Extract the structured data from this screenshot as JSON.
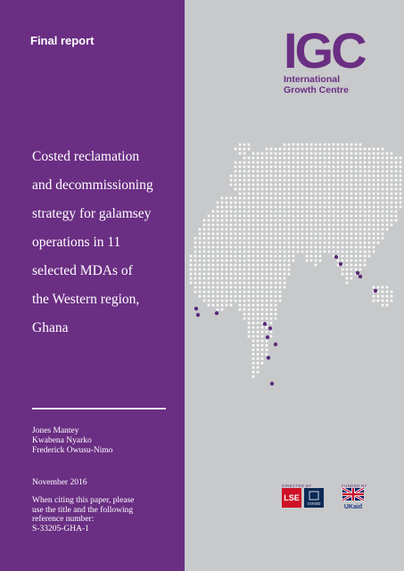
{
  "report_label": "Final report",
  "logo": {
    "acronym": "IGC",
    "name_line1": "International",
    "name_line2": "Growth Centre"
  },
  "title_lines": [
    "Costed reclamation",
    "and decommissioning",
    "strategy for galamsey",
    "operations in 11",
    "selected MDAs of",
    "the Western region,",
    "Ghana"
  ],
  "authors": [
    "Jones Mantey",
    "Kwabena Nyarko",
    "Frederick Owusu-Nimo"
  ],
  "date": "November 2016",
  "citation_lines": [
    "When citing this paper, please",
    "use the title and the following",
    "reference number:",
    "S-33205-GHA-1"
  ],
  "credits": {
    "directed_by": "DIRECTED BY",
    "funded_by": "FUNDED BY",
    "lse": "LSE",
    "oxford": "OXFORD",
    "ukaid": "UKaid"
  },
  "colors": {
    "purple": "#6a2e83",
    "grey": "#c8c9cb",
    "dots": "#ffffff",
    "markers": "#5b2a7a"
  }
}
